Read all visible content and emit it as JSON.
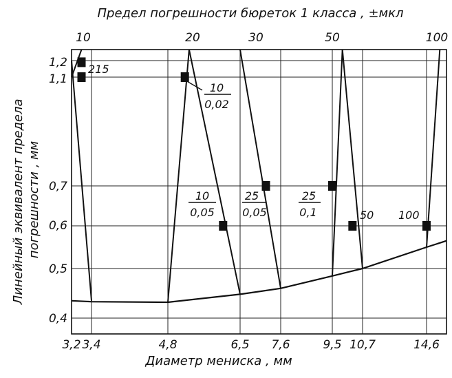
{
  "chart_data": {
    "type": "line",
    "title": "Предел погрешности бюреток 1 класса , ±мкл",
    "xlabel": "Диаметр   мениска , мм",
    "ylabel": "Линейный эквивалент предела погрешности , мм",
    "x_ticks": [
      "3,2",
      "3,4",
      "4,8",
      "6,5",
      "7,6",
      "9,5",
      "10,7",
      "14,6"
    ],
    "y_ticks": [
      "1,2",
      "1,1",
      "0,7",
      "0,6",
      "0,5",
      "0,4"
    ],
    "top_ticks": [
      "10",
      "20",
      "30",
      "50",
      "100"
    ],
    "grid": true,
    "series": [
      {
        "kind": "curve",
        "points": [
          [
            3.2,
            0.435
          ],
          [
            3.4,
            0.433
          ],
          [
            4.8,
            0.432
          ],
          [
            6.5,
            0.448
          ],
          [
            7.6,
            0.46
          ],
          [
            9.5,
            0.485
          ],
          [
            10.7,
            0.5
          ],
          [
            14.6,
            0.55
          ],
          [
            15.5,
            0.565
          ]
        ]
      },
      {
        "kind": "line",
        "points": [
          [
            3.2,
            1.2
          ],
          [
            3.4,
            0.435
          ]
        ]
      },
      {
        "kind": "line",
        "points": [
          [
            3.2,
            1.1
          ],
          [
            3.3,
            1.235
          ]
        ]
      },
      {
        "kind": "line",
        "points": [
          [
            4.8,
            0.432
          ],
          [
            5.3,
            1.235
          ]
        ]
      },
      {
        "kind": "line",
        "points": [
          [
            5.3,
            1.235
          ],
          [
            6.5,
            0.448
          ]
        ]
      },
      {
        "kind": "line",
        "points": [
          [
            6.5,
            1.235
          ],
          [
            7.6,
            0.46
          ]
        ]
      },
      {
        "kind": "line",
        "points": [
          [
            9.5,
            0.485
          ],
          [
            9.9,
            1.235
          ]
        ]
      },
      {
        "kind": "line",
        "points": [
          [
            9.9,
            1.235
          ],
          [
            10.7,
            0.5
          ]
        ]
      },
      {
        "kind": "line",
        "points": [
          [
            14.6,
            0.55
          ],
          [
            15.2,
            1.235
          ]
        ]
      }
    ],
    "markers": [
      {
        "x": 3.3,
        "y": 1.19
      },
      {
        "x": 3.3,
        "y": 1.1
      },
      {
        "x": 5.2,
        "y": 1.1
      },
      {
        "x": 6.1,
        "y": 0.6
      },
      {
        "x": 7.2,
        "y": 0.7
      },
      {
        "x": 9.5,
        "y": 0.7
      },
      {
        "x": 10.3,
        "y": 0.6
      },
      {
        "x": 14.6,
        "y": 0.6
      }
    ],
    "annotations": [
      {
        "text": "215"
      },
      {
        "numerator": "10",
        "denominator": "0,02"
      },
      {
        "numerator": "10",
        "denominator": "0,05"
      },
      {
        "numerator": "25",
        "denominator": "0,05"
      },
      {
        "numerator": "25",
        "denominator": "0,1"
      },
      {
        "text": "50"
      },
      {
        "text": "100"
      }
    ]
  }
}
